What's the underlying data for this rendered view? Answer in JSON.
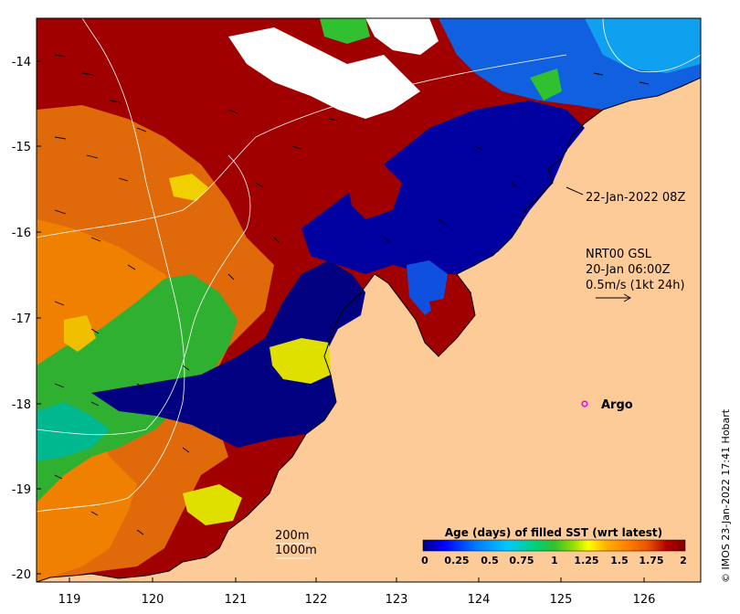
{
  "map": {
    "xaxis_ticks": [
      "119",
      "120",
      "121",
      "122",
      "123",
      "124",
      "125",
      "126"
    ],
    "yaxis_ticks": [
      "-14",
      "-15",
      "-16",
      "-17",
      "-18",
      "-19",
      "-20"
    ],
    "annotation_date": "22-Jan-2022 08Z",
    "wind_title": "NRT00 GSL",
    "wind_time": "20-Jan 06:00Z",
    "wind_scale": "0.5m/s (1kt 24h)",
    "argo_label": "Argo",
    "contour_200": "200m",
    "contour_1000": "1000m",
    "colorbar_title": "Age (days) of filled SST (wrt latest)",
    "colorbar_ticks": [
      "0",
      "0.25",
      "0.5",
      "0.75",
      "1",
      "1.25",
      "1.5",
      "1.75",
      "2"
    ],
    "credit": "© IMOS 23-Jan-2022 17:41 Hobart",
    "colors": {
      "land": "#fdcb98",
      "argo": "#e800e8",
      "colormap": [
        "#00007f",
        "#0000ff",
        "#0078ff",
        "#00c8ff",
        "#00d080",
        "#30c030",
        "#a0e000",
        "#ffff00",
        "#ffb000",
        "#ff8000",
        "#e85000",
        "#b00000",
        "#7f0000"
      ]
    }
  }
}
